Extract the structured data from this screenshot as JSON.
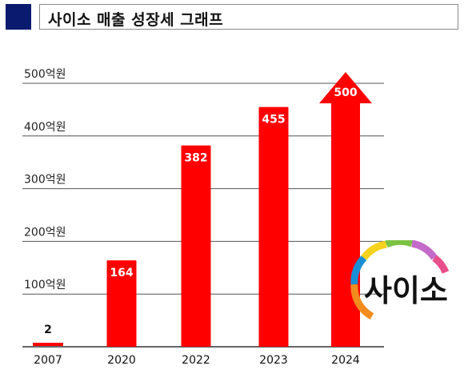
{
  "header": {
    "title": "사이소 매출 성장세 그래프"
  },
  "logo": {
    "text": "사이소"
  },
  "colors": {
    "bar": "#ff0000",
    "header_square": "#0a1a6e",
    "grid": "#555555"
  },
  "chart_data": {
    "type": "bar",
    "title": "",
    "categories": [
      "2007",
      "2020",
      "2022",
      "2023",
      "2024"
    ],
    "values": [
      2,
      164,
      382,
      455,
      500
    ],
    "data_labels": [
      "2",
      "164",
      "382",
      "455",
      "500"
    ],
    "y_ticks": [
      100,
      200,
      300,
      400,
      500
    ],
    "y_tick_labels": [
      "100억원",
      "200억원",
      "300억원",
      "400억원",
      "500억원"
    ],
    "ylim": [
      0,
      500
    ],
    "grid": true,
    "last_bar_style": "arrow"
  }
}
